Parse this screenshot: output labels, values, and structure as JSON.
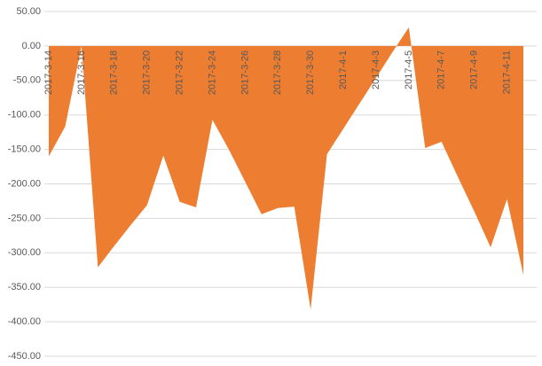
{
  "chart_data": {
    "type": "area",
    "color": "#ed7d31",
    "grid": true,
    "categories": [
      "2017-3-14",
      null,
      "2017-3-16",
      null,
      "2017-3-18",
      null,
      "2017-3-20",
      null,
      "2017-3-22",
      null,
      "2017-3-24",
      null,
      "2017-3-26",
      null,
      "2017-3-28",
      null,
      "2017-3-30",
      null,
      "2017-4-1",
      null,
      "2017-4-3",
      null,
      "2017-4-5",
      null,
      "2017-4-7",
      null,
      "2017-4-9",
      null,
      "2017-4-11",
      null
    ],
    "values": [
      -160,
      -117,
      0,
      -321,
      -290,
      -260,
      -231,
      -159,
      -226,
      -234,
      -107,
      -150,
      -197,
      -244,
      -235,
      -233,
      -382,
      -157,
      -120,
      -83,
      -46,
      -9,
      27,
      -148,
      -139,
      -190,
      -240,
      -292,
      -222,
      -332
    ],
    "ylim": [
      -450,
      50
    ],
    "yticks": [
      {
        "value": -450,
        "label": "-450.00"
      },
      {
        "value": -400,
        "label": "-400.00"
      },
      {
        "value": -350,
        "label": "-350.00"
      },
      {
        "value": -300,
        "label": "-300.00"
      },
      {
        "value": -250,
        "label": "-250.00"
      },
      {
        "value": -200,
        "label": "-200.00"
      },
      {
        "value": -150,
        "label": "-150.00"
      },
      {
        "value": -100,
        "label": "-100.00"
      },
      {
        "value": -50,
        "label": "-50.00"
      },
      {
        "value": 0,
        "label": "0.00"
      },
      {
        "value": 50,
        "label": "50.00"
      }
    ]
  }
}
